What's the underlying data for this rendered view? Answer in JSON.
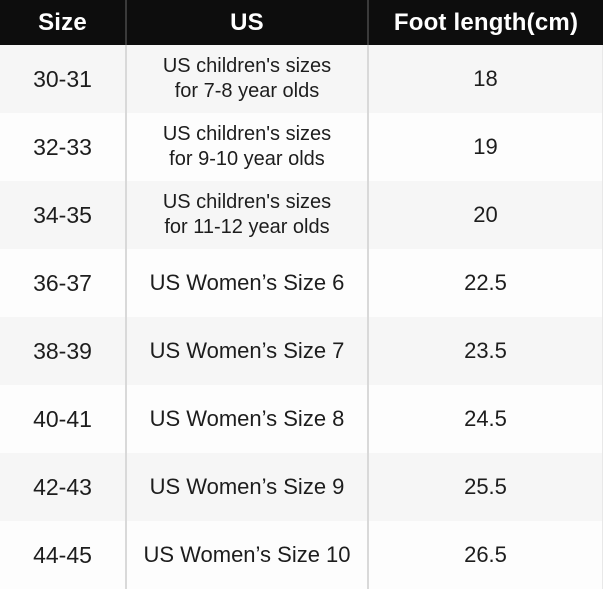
{
  "chart_data": {
    "type": "table",
    "columns": [
      "Size",
      "US",
      "Foot length(cm)"
    ],
    "rows": [
      {
        "size": "30-31",
        "us": "US children's sizes\nfor 7-8 year olds",
        "foot_length_cm": "18"
      },
      {
        "size": "32-33",
        "us": "US children's sizes\nfor 9-10 year olds",
        "foot_length_cm": "19"
      },
      {
        "size": "34-35",
        "us": "US children's sizes\nfor 11-12 year olds",
        "foot_length_cm": "20"
      },
      {
        "size": "36-37",
        "us": "US Women’s Size 6",
        "foot_length_cm": "22.5"
      },
      {
        "size": "38-39",
        "us": "US Women’s Size 7",
        "foot_length_cm": "23.5"
      },
      {
        "size": "40-41",
        "us": "US Women’s Size 8",
        "foot_length_cm": "24.5"
      },
      {
        "size": "42-43",
        "us": "US Women’s Size 9",
        "foot_length_cm": "25.5"
      },
      {
        "size": "44-45",
        "us": "US Women’s Size 10",
        "foot_length_cm": "26.5"
      }
    ]
  },
  "colors": {
    "header_bg": "#0d0d0d",
    "header_text": "#ffffff",
    "row_alt_bg": "#f6f6f6",
    "row_bg": "#fdfdfd",
    "divider": "#d9d9d9",
    "header_divider": "#3a3a3a",
    "body_text": "#1d1d1d"
  }
}
